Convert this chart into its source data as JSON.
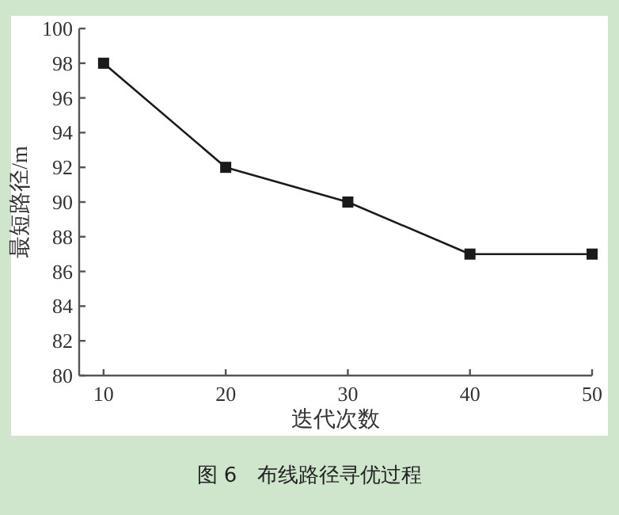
{
  "chart_data": {
    "type": "line",
    "xlabel": "迭代次数",
    "ylabel": "最短路径/m",
    "annotations": [
      "图 6　布线路径寻优过程"
    ],
    "x": [
      10,
      20,
      30,
      40,
      50
    ],
    "series": [
      {
        "color": "#1a1a1a",
        "values": [
          98,
          92,
          90,
          87,
          87
        ]
      }
    ],
    "xlim": [
      8,
      50
    ],
    "xticks": [
      10,
      20,
      30,
      40,
      50
    ],
    "ylim": [
      80,
      100
    ],
    "yticks": [
      80,
      82,
      84,
      86,
      88,
      90,
      92,
      94,
      96,
      98,
      100
    ],
    "marker": "square",
    "line_style": "solid",
    "grid": false
  }
}
